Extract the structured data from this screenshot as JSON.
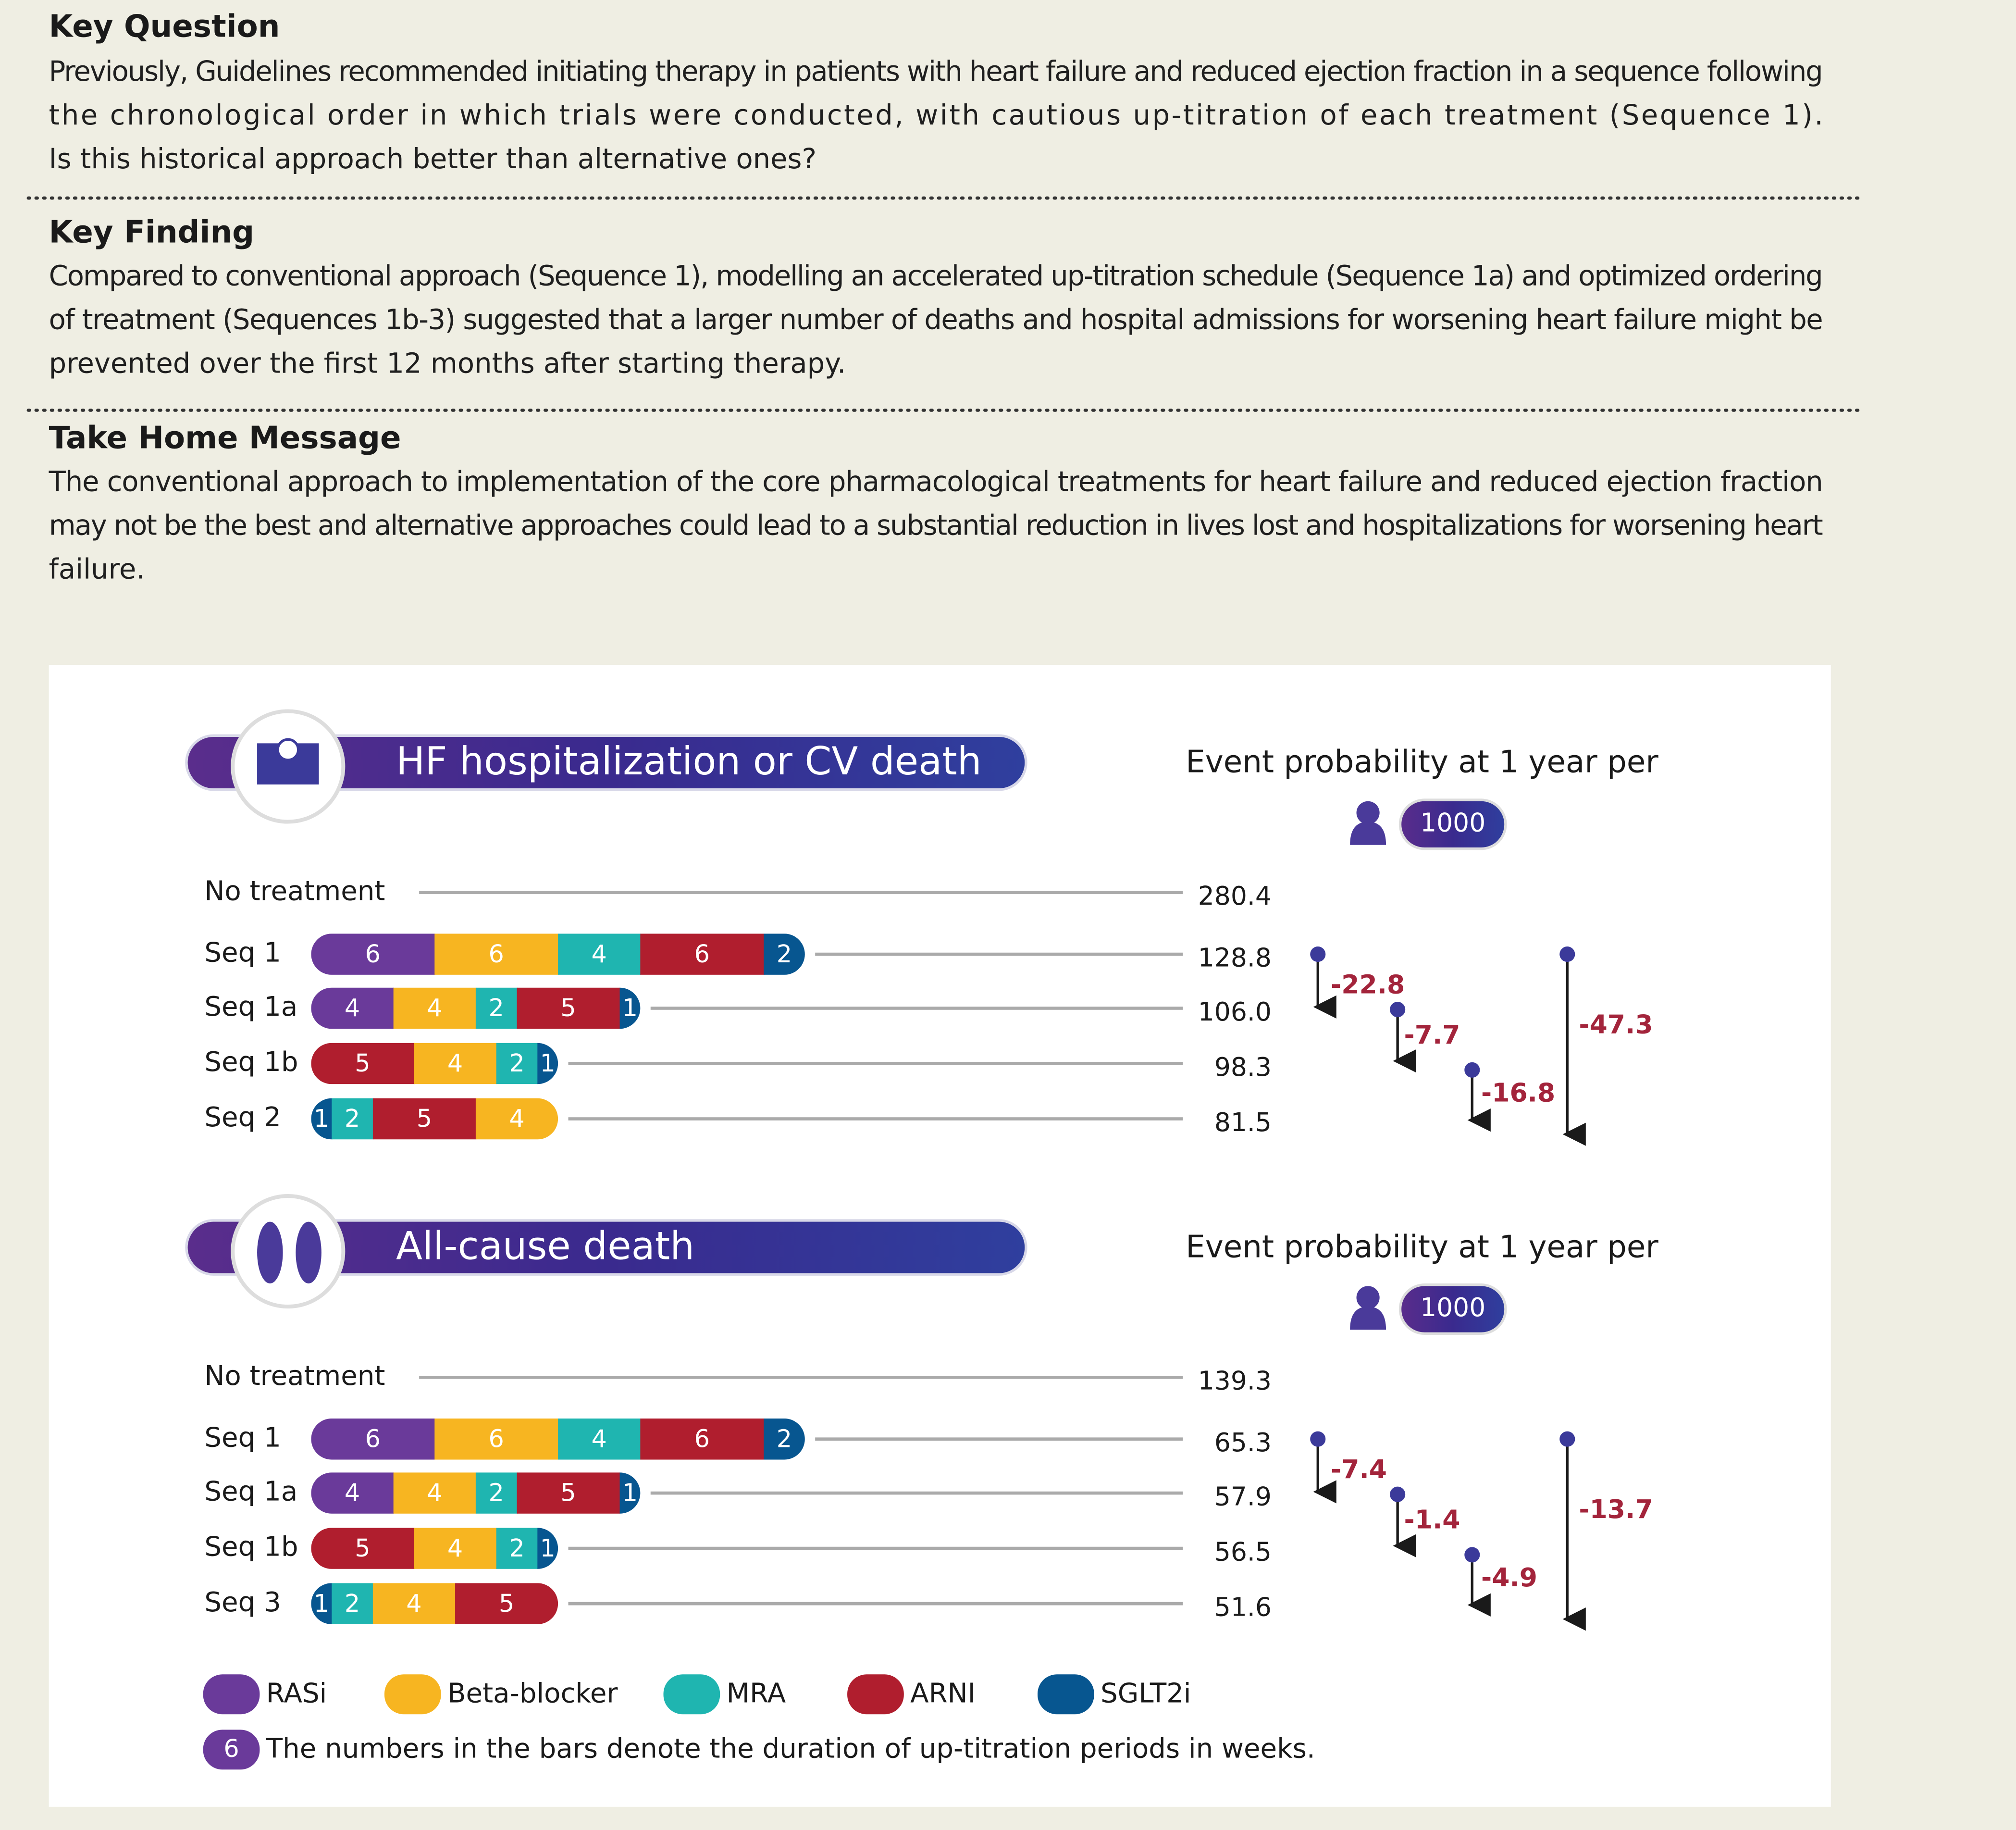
{
  "key_question": {
    "title": "Key Question",
    "lines": [
      "Previously, Guidelines recommended initiating therapy in patients with heart failure and reduced ejection fraction in a sequence following",
      "the chronological order in which trials were conducted, with cautious up-titration of each treatment (Sequence 1).",
      "Is this historical approach better than alternative ones?"
    ]
  },
  "key_finding": {
    "title": "Key Finding",
    "lines": [
      "Compared to conventional approach (Sequence 1), modelling an accelerated up-titration schedule (Sequence 1a) and optimized ordering",
      "of treatment (Sequences 1b-3) suggested that a larger number of deaths and hospital admissions for worsening heart failure might be",
      "prevented over the first 12 months after starting therapy."
    ]
  },
  "take_home": {
    "title": "Take Home Message",
    "lines": [
      "The conventional approach to implementation of the core pharmacological treatments for heart failure and reduced ejection fraction",
      "may not be the best and alternative approaches could lead to a substantial reduction in lives lost and hospitalizations for worsening heart",
      "failure."
    ]
  },
  "panels": [
    {
      "title": "HF hospitalization or CV death",
      "header": "Event probability at 1 year per",
      "per": 1000,
      "rows": [
        {
          "label": "No treatment",
          "segments": [],
          "value": 280.4
        },
        {
          "label": "Seq 1",
          "segments": [
            {
              "weeks": 6,
              "color": "#6a3a9a"
            },
            {
              "weeks": 6,
              "color": "#f7b521"
            },
            {
              "weeks": 4,
              "color": "#1fb5b0"
            },
            {
              "weeks": 6,
              "color": "#b01e2e"
            },
            {
              "weeks": 2,
              "color": "#075690"
            }
          ],
          "value": 128.8
        },
        {
          "label": "Seq 1a",
          "segments": [
            {
              "weeks": 4,
              "color": "#6a3a9a"
            },
            {
              "weeks": 4,
              "color": "#f7b521"
            },
            {
              "weeks": 2,
              "color": "#1fb5b0"
            },
            {
              "weeks": 5,
              "color": "#b01e2e"
            },
            {
              "weeks": 1,
              "color": "#075690"
            }
          ],
          "value": 106.0,
          "value_label": "106.0"
        },
        {
          "label": "Seq 1b",
          "segments": [
            {
              "weeks": 5,
              "color": "#b01e2e"
            },
            {
              "weeks": 4,
              "color": "#f7b521"
            },
            {
              "weeks": 2,
              "color": "#1fb5b0"
            },
            {
              "weeks": 1,
              "color": "#075690"
            }
          ],
          "value": 98.3
        },
        {
          "label": "Seq 2",
          "segments": [
            {
              "weeks": 1,
              "color": "#075690"
            },
            {
              "weeks": 2,
              "color": "#1fb5b0"
            },
            {
              "weeks": 5,
              "color": "#b01e2e"
            },
            {
              "weeks": 4,
              "color": "#f7b521"
            }
          ],
          "value": 81.5
        }
      ],
      "differences": [
        -22.8,
        -7.7,
        -16.8,
        -47.3
      ]
    },
    {
      "title": "All-cause death",
      "header": "Event probability at 1 year per",
      "per": 1000,
      "rows": [
        {
          "label": "No treatment",
          "segments": [],
          "value": 139.3
        },
        {
          "label": "Seq 1",
          "segments": [
            {
              "weeks": 6,
              "color": "#6a3a9a"
            },
            {
              "weeks": 6,
              "color": "#f7b521"
            },
            {
              "weeks": 4,
              "color": "#1fb5b0"
            },
            {
              "weeks": 6,
              "color": "#b01e2e"
            },
            {
              "weeks": 2,
              "color": "#075690"
            }
          ],
          "value": 65.3
        },
        {
          "label": "Seq 1a",
          "segments": [
            {
              "weeks": 4,
              "color": "#6a3a9a"
            },
            {
              "weeks": 4,
              "color": "#f7b521"
            },
            {
              "weeks": 2,
              "color": "#1fb5b0"
            },
            {
              "weeks": 5,
              "color": "#b01e2e"
            },
            {
              "weeks": 1,
              "color": "#075690"
            }
          ],
          "value": 57.9
        },
        {
          "label": "Seq 1b",
          "segments": [
            {
              "weeks": 5,
              "color": "#b01e2e"
            },
            {
              "weeks": 4,
              "color": "#f7b521"
            },
            {
              "weeks": 2,
              "color": "#1fb5b0"
            },
            {
              "weeks": 1,
              "color": "#075690"
            }
          ],
          "value": 56.5
        },
        {
          "label": "Seq 3",
          "segments": [
            {
              "weeks": 1,
              "color": "#075690"
            },
            {
              "weeks": 2,
              "color": "#1fb5b0"
            },
            {
              "weeks": 4,
              "color": "#f7b521"
            },
            {
              "weeks": 5,
              "color": "#b01e2e"
            }
          ],
          "value": 51.6
        }
      ],
      "differences": [
        -7.4,
        -1.4,
        -4.9,
        -13.7
      ]
    }
  ],
  "legend": {
    "items": [
      {
        "name": "RASi",
        "color": "#6a3a9a"
      },
      {
        "name": "Beta-blocker",
        "color": "#f7b521"
      },
      {
        "name": "MRA",
        "color": "#1fb5b0"
      },
      {
        "name": "ARNI",
        "color": "#b01e2e"
      },
      {
        "name": "SGLT2i",
        "color": "#075690"
      }
    ],
    "note_example": 6,
    "note": "The numbers in the bars denote the duration of up-titration periods in weeks."
  }
}
